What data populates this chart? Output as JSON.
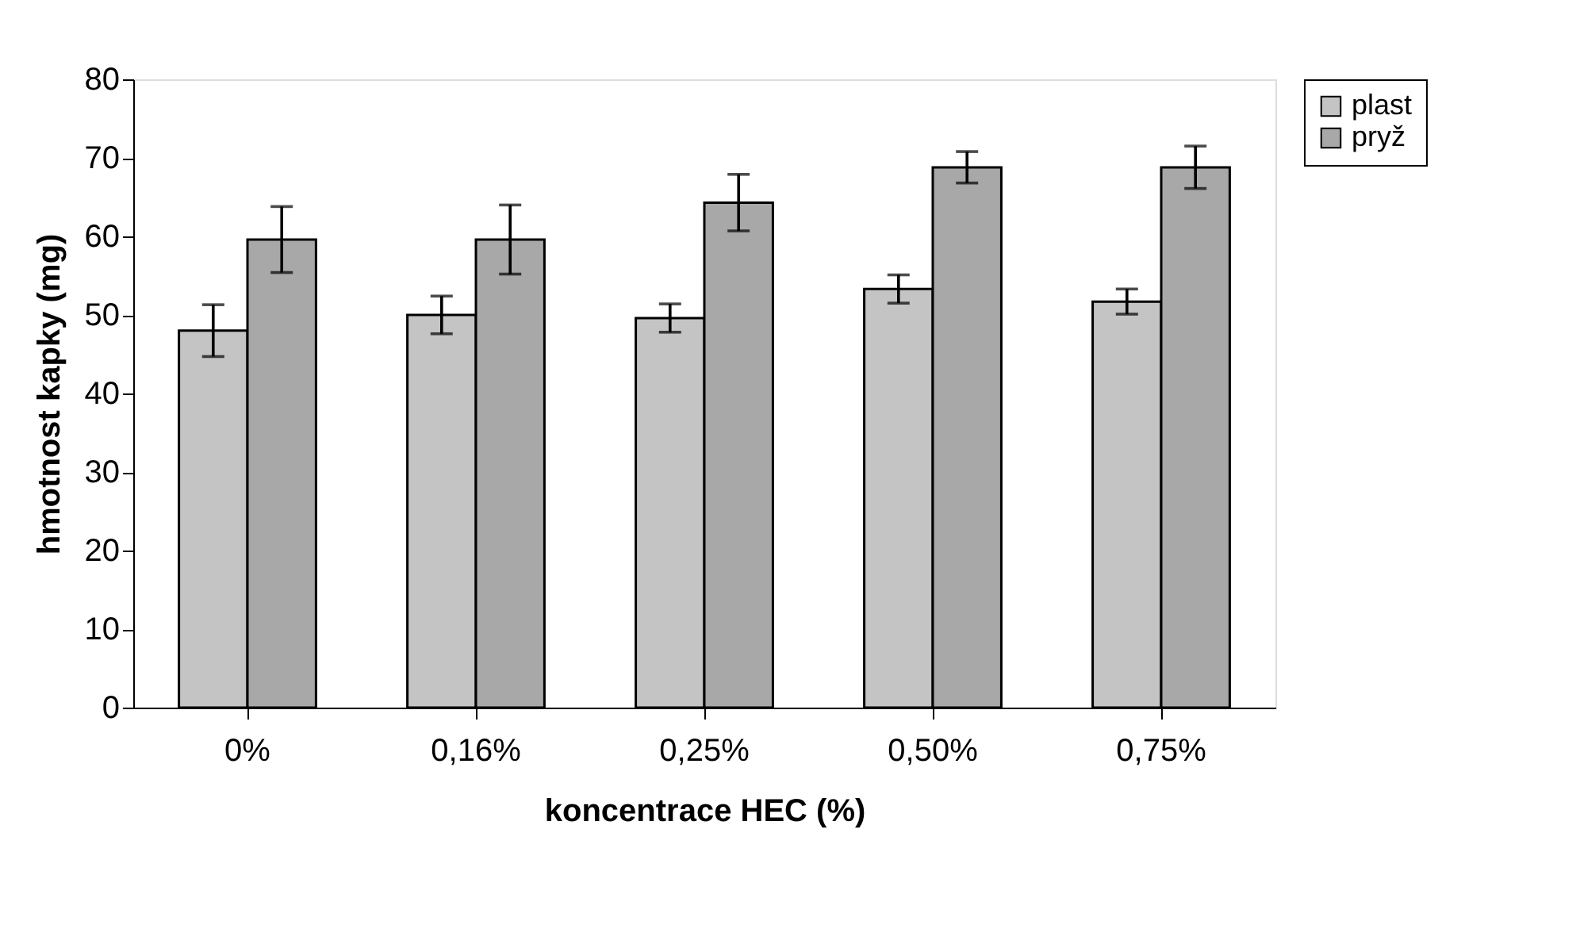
{
  "chart_data": {
    "type": "bar",
    "xlabel": "koncentrace HEC (%)",
    "ylabel": "hmotnost kapky (mg)",
    "categories": [
      "0%",
      "0,16%",
      "0,25%",
      "0,50%",
      "0,75%"
    ],
    "series": [
      {
        "name": "plast",
        "color": "#c4c4c4",
        "values": [
          48.0,
          50.0,
          49.6,
          53.3,
          51.7
        ],
        "errors": [
          3.3,
          2.4,
          1.8,
          1.8,
          1.6
        ]
      },
      {
        "name": "pryž",
        "color": "#a8a8a8",
        "values": [
          59.6,
          59.6,
          64.3,
          68.8,
          68.8
        ],
        "errors": [
          4.2,
          4.4,
          3.6,
          2.0,
          2.7
        ]
      }
    ],
    "ylim": [
      0,
      80
    ],
    "yticks": [
      0,
      10,
      20,
      30,
      40,
      50,
      60,
      70,
      80
    ],
    "grid": false,
    "legend": "right"
  }
}
